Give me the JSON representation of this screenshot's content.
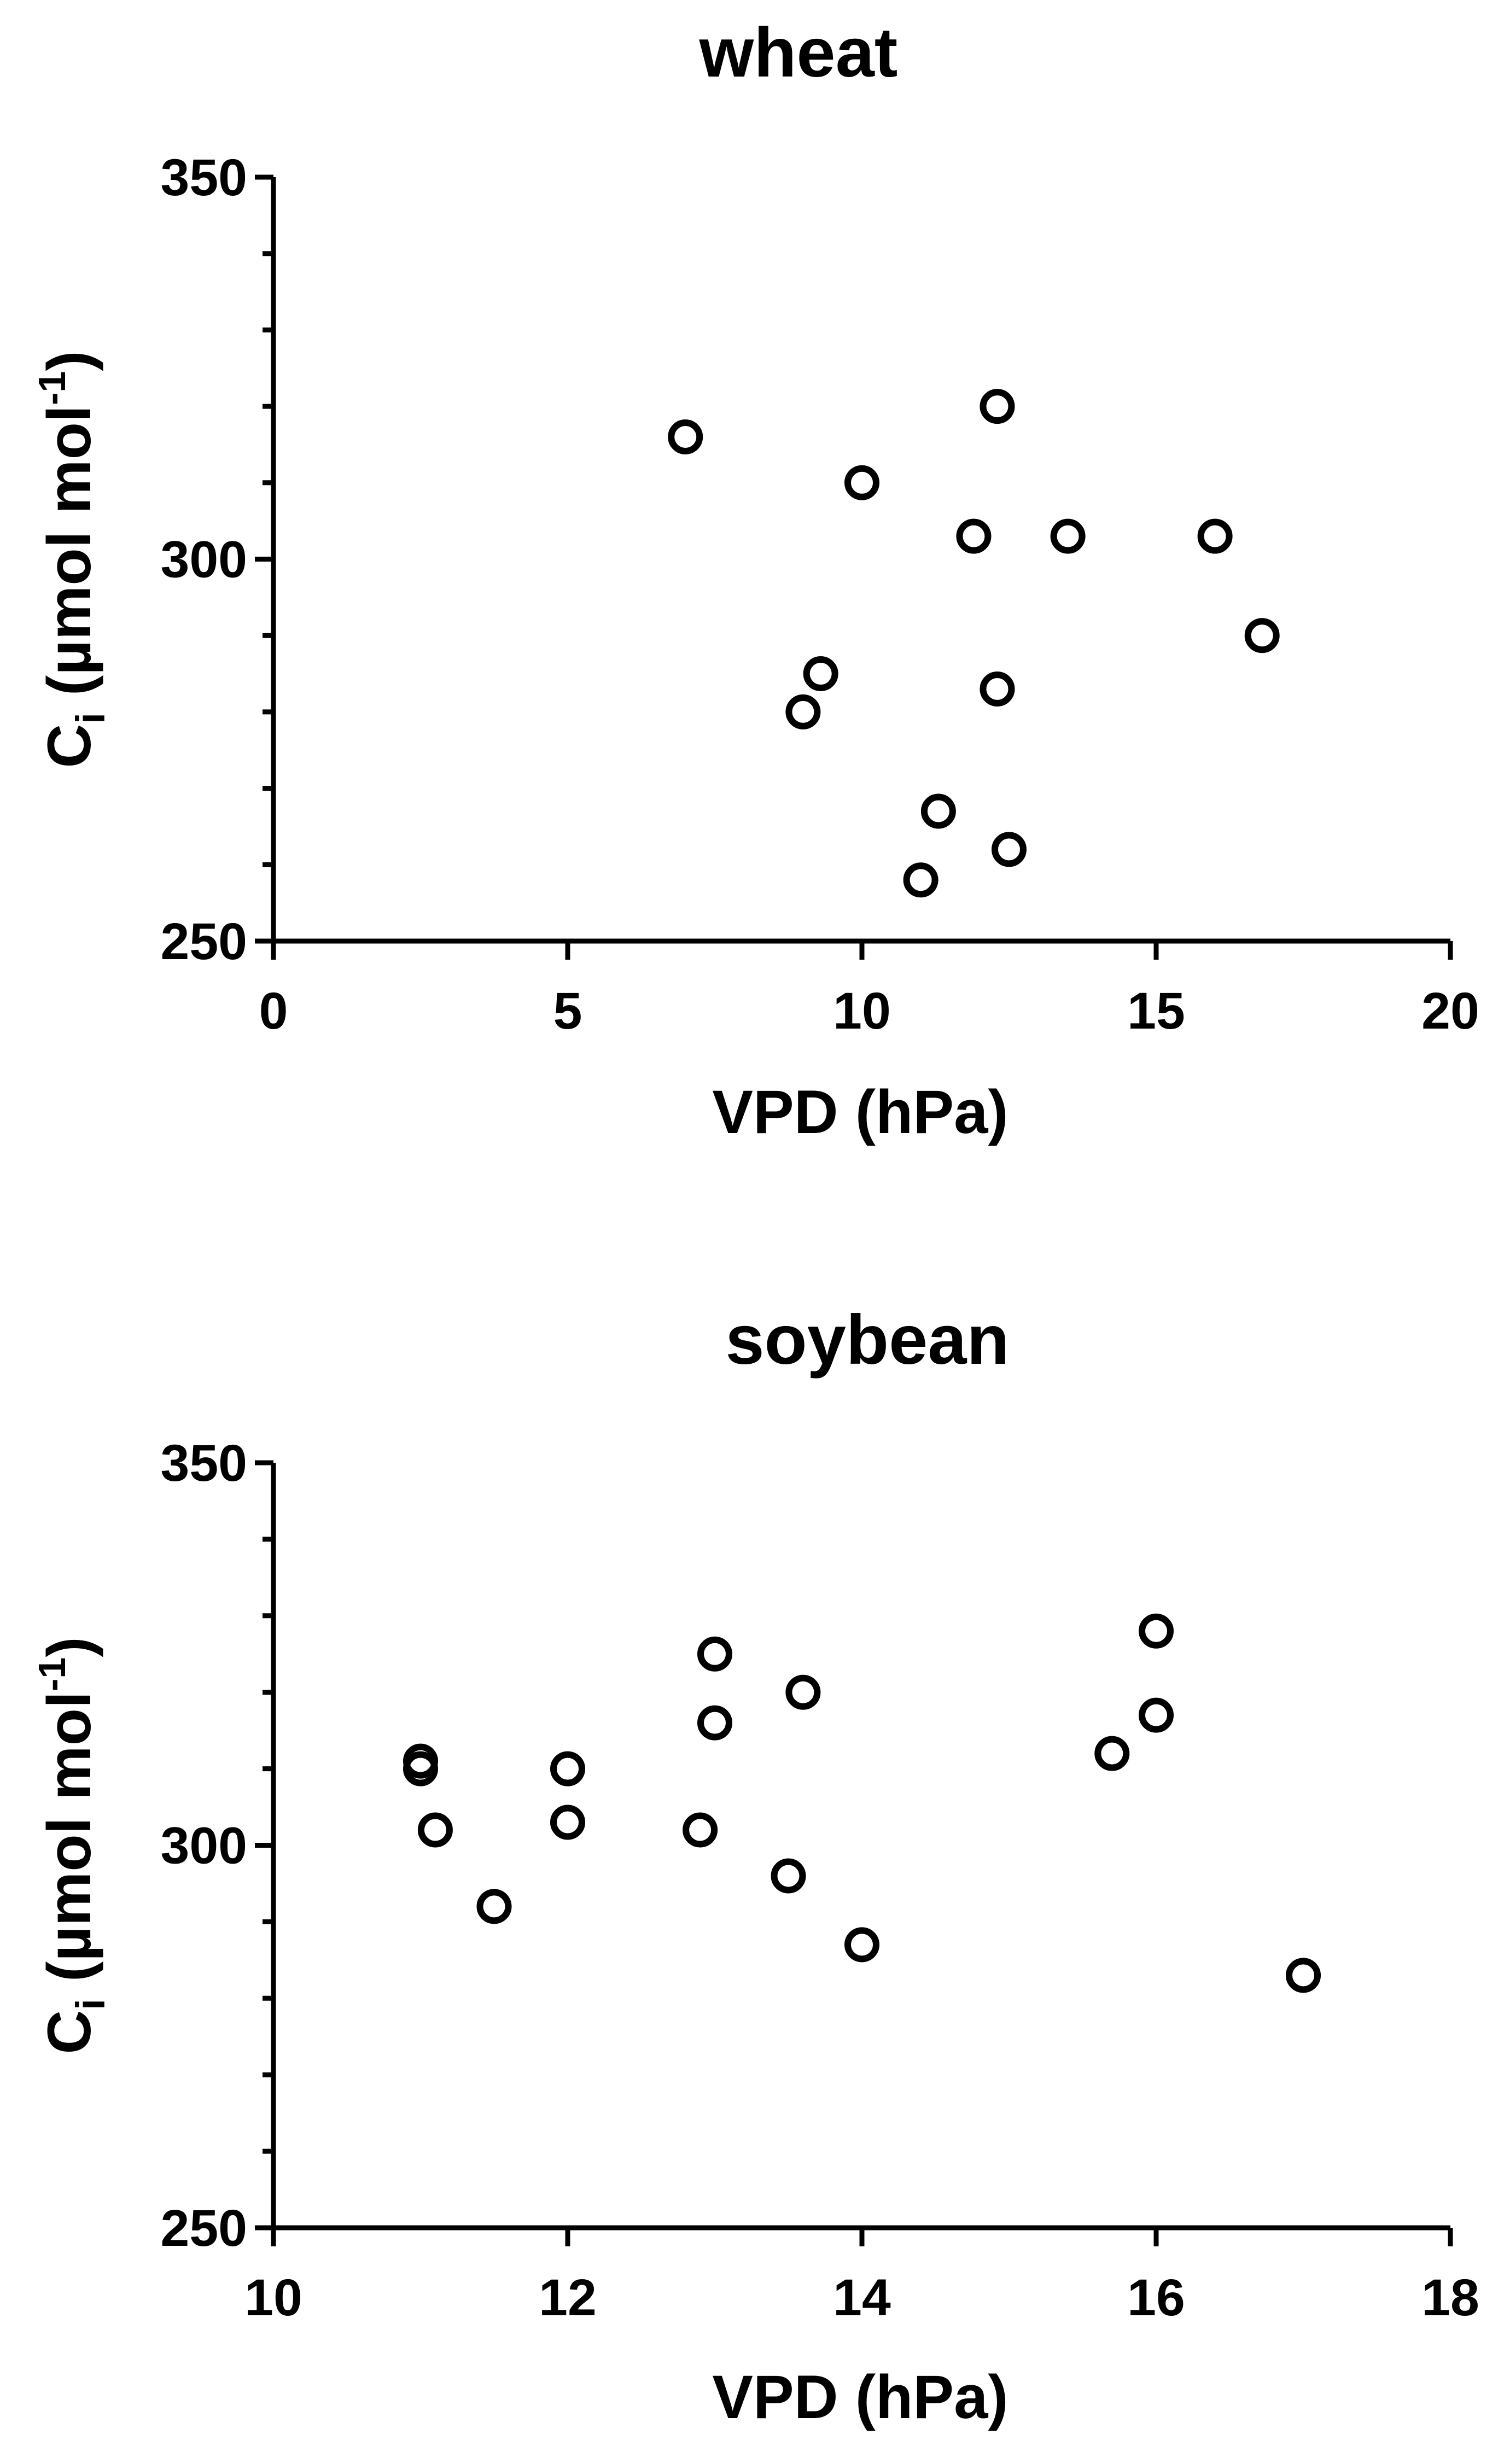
{
  "chart_data": [
    {
      "type": "scatter",
      "title": "wheat",
      "xlabel": "VPD (hPa)",
      "ylabel": {
        "base": "C",
        "sub": "i",
        "main": " (µmol mol",
        "sup": "-1",
        "close": ")"
      },
      "xlim": [
        0,
        20
      ],
      "ylim": [
        250,
        350
      ],
      "xticks": [
        "0",
        "5",
        "10",
        "15",
        "20"
      ],
      "yticks": [
        "250",
        "300",
        "350"
      ],
      "y_minor_step": 10,
      "marker": "open-circle",
      "grid": false,
      "series": [
        {
          "points": [
            {
              "x": 7.0,
              "y": 316
            },
            {
              "x": 10.0,
              "y": 310
            },
            {
              "x": 12.3,
              "y": 320
            },
            {
              "x": 11.9,
              "y": 303
            },
            {
              "x": 13.5,
              "y": 303
            },
            {
              "x": 16.0,
              "y": 303
            },
            {
              "x": 16.8,
              "y": 290
            },
            {
              "x": 9.3,
              "y": 285
            },
            {
              "x": 9.0,
              "y": 280
            },
            {
              "x": 12.3,
              "y": 283
            },
            {
              "x": 11.3,
              "y": 267
            },
            {
              "x": 12.5,
              "y": 262
            },
            {
              "x": 11.0,
              "y": 258
            }
          ]
        }
      ]
    },
    {
      "type": "scatter",
      "title": "soybean",
      "xlabel": "VPD (hPa)",
      "ylabel": {
        "base": "C",
        "sub": "i",
        "main": " (µmol mol",
        "sup": "-1",
        "close": ")"
      },
      "xlim": [
        10,
        18
      ],
      "ylim": [
        250,
        350
      ],
      "xticks": [
        "10",
        "12",
        "14",
        "16",
        "18"
      ],
      "yticks": [
        "250",
        "300",
        "350"
      ],
      "y_minor_step": 10,
      "marker": "open-circle",
      "grid": false,
      "series": [
        {
          "points": [
            {
              "x": 11.0,
              "y": 311
            },
            {
              "x": 11.0,
              "y": 310
            },
            {
              "x": 11.1,
              "y": 302
            },
            {
              "x": 11.5,
              "y": 292
            },
            {
              "x": 12.0,
              "y": 310
            },
            {
              "x": 12.0,
              "y": 303
            },
            {
              "x": 12.9,
              "y": 302
            },
            {
              "x": 13.0,
              "y": 325
            },
            {
              "x": 13.0,
              "y": 316
            },
            {
              "x": 13.5,
              "y": 296
            },
            {
              "x": 13.6,
              "y": 320
            },
            {
              "x": 14.0,
              "y": 287
            },
            {
              "x": 15.7,
              "y": 312
            },
            {
              "x": 16.0,
              "y": 328
            },
            {
              "x": 16.0,
              "y": 317
            },
            {
              "x": 17.0,
              "y": 283
            }
          ]
        }
      ]
    }
  ]
}
